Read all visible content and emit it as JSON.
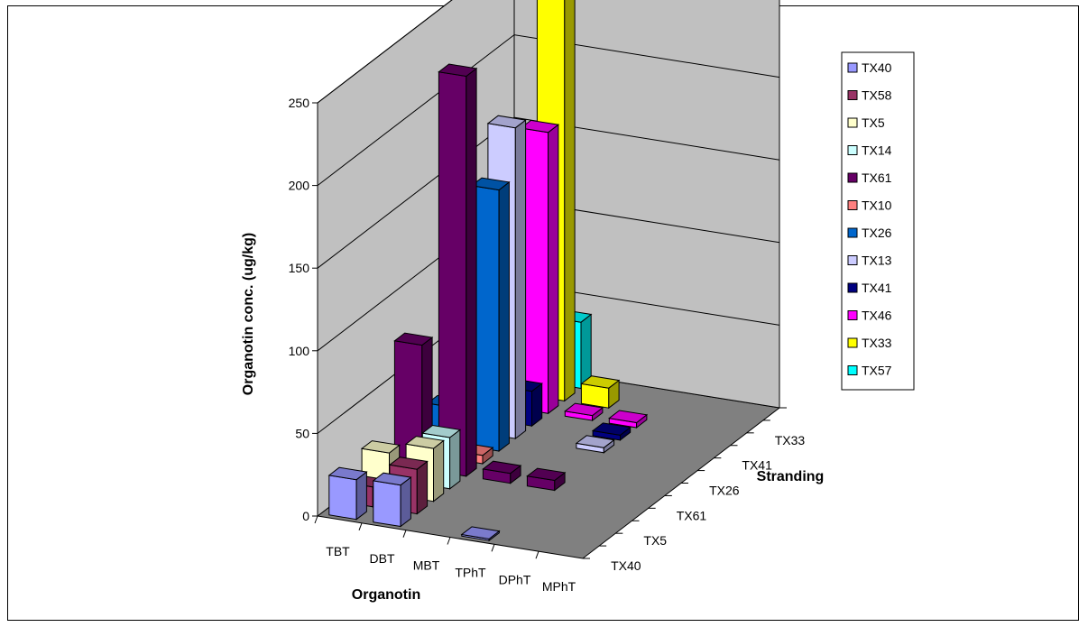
{
  "chart_data": {
    "type": "bar3d",
    "title": "",
    "xlabel": "Organotin",
    "ylabel": "Organotin conc. (ug/kg)",
    "zlabel": "Stranding",
    "categories": [
      "TBT",
      "DBT",
      "MBT",
      "TPhT",
      "DPhT",
      "MPhT"
    ],
    "depth_labels": [
      "TX40",
      "TX5",
      "TX61",
      "TX26",
      "TX41",
      "TX33"
    ],
    "ylim": [
      0,
      250
    ],
    "yticks": [
      0,
      50,
      100,
      150,
      200,
      250
    ],
    "grid": true,
    "legend_position": "right",
    "series": [
      {
        "name": "TX40",
        "color": "#9999ff",
        "values": [
          24,
          25,
          0,
          1,
          0,
          0
        ]
      },
      {
        "name": "TX58",
        "color": "#993366",
        "values": [
          12,
          27,
          0,
          0,
          0,
          0
        ]
      },
      {
        "name": "TX5",
        "color": "#ffffcc",
        "values": [
          25,
          32,
          0,
          0,
          0,
          0
        ]
      },
      {
        "name": "TX14",
        "color": "#ccffff",
        "values": [
          5,
          31,
          0,
          0,
          0,
          0
        ]
      },
      {
        "name": "TX61",
        "color": "#660066",
        "values": [
          75,
          242,
          6,
          6,
          0,
          0
        ]
      },
      {
        "name": "TX10",
        "color": "#ff8080",
        "values": [
          5,
          5,
          0,
          0,
          0,
          0
        ]
      },
      {
        "name": "TX26",
        "color": "#0066cc",
        "values": [
          22,
          158,
          0,
          0,
          0,
          0
        ]
      },
      {
        "name": "TX13",
        "color": "#ccccff",
        "values": [
          73,
          188,
          0,
          3,
          0,
          0
        ]
      },
      {
        "name": "TX41",
        "color": "#000080",
        "values": [
          1,
          21,
          0,
          3,
          0,
          0
        ]
      },
      {
        "name": "TX46",
        "color": "#ff00ff",
        "values": [
          10,
          170,
          3,
          3,
          0,
          0
        ]
      },
      {
        "name": "TX33",
        "color": "#ffff00",
        "values": [
          15,
          248,
          12,
          0,
          0,
          0
        ]
      },
      {
        "name": "TX57",
        "color": "#00ffff",
        "values": [
          45,
          40,
          0,
          0,
          0,
          0
        ]
      }
    ]
  }
}
